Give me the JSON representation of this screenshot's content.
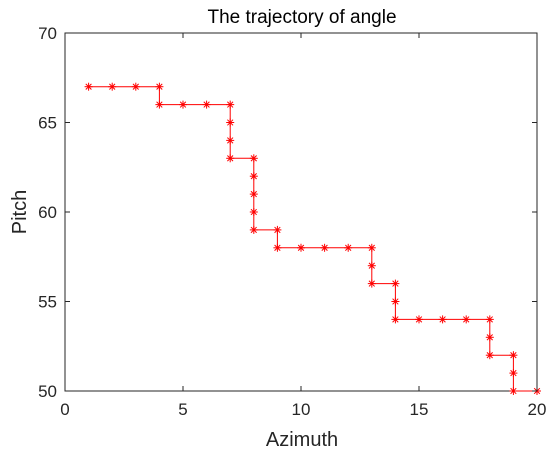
{
  "chart_data": {
    "type": "line",
    "title": "The trajectory of angle",
    "xlabel": "Azimuth",
    "ylabel": "Pitch",
    "xlim": [
      0,
      20
    ],
    "ylim": [
      50,
      70
    ],
    "xticks": [
      "0",
      "5",
      "10",
      "15",
      "20"
    ],
    "yticks": [
      "50",
      "55",
      "60",
      "65",
      "70"
    ],
    "grid": false,
    "series": [
      {
        "marker": "asterisk",
        "color": "#ff0000",
        "points": [
          [
            1,
            67
          ],
          [
            2,
            67
          ],
          [
            3,
            67
          ],
          [
            4,
            67
          ],
          [
            4,
            66
          ],
          [
            5,
            66
          ],
          [
            6,
            66
          ],
          [
            7,
            66
          ],
          [
            7,
            65
          ],
          [
            7,
            64
          ],
          [
            7,
            63
          ],
          [
            8,
            63
          ],
          [
            8,
            62
          ],
          [
            8,
            61
          ],
          [
            8,
            60
          ],
          [
            8,
            59
          ],
          [
            9,
            59
          ],
          [
            9,
            58
          ],
          [
            10,
            58
          ],
          [
            11,
            58
          ],
          [
            12,
            58
          ],
          [
            13,
            58
          ],
          [
            13,
            57
          ],
          [
            13,
            56
          ],
          [
            14,
            56
          ],
          [
            14,
            55
          ],
          [
            14,
            54
          ],
          [
            15,
            54
          ],
          [
            16,
            54
          ],
          [
            17,
            54
          ],
          [
            18,
            54
          ],
          [
            18,
            53
          ],
          [
            18,
            52
          ],
          [
            19,
            52
          ],
          [
            19,
            51
          ],
          [
            19,
            50
          ],
          [
            20,
            50
          ]
        ]
      }
    ]
  }
}
